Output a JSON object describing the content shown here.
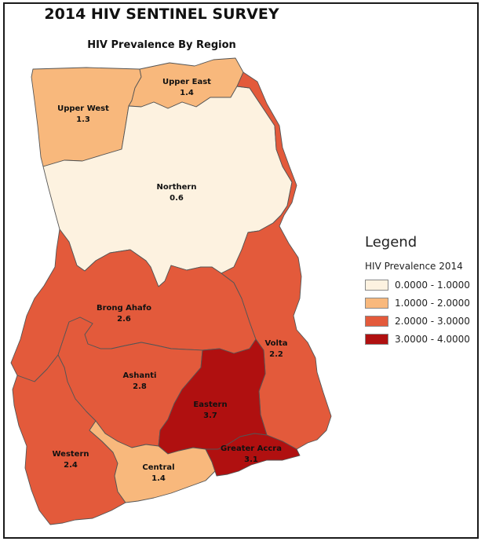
{
  "title": "2014 HIV SENTINEL SURVEY",
  "subtitle": "HIV Prevalence By Region",
  "legend": {
    "title": "Legend",
    "subtitle": "HIV Prevalence 2014",
    "classes": [
      {
        "label": "0.0000 - 1.0000",
        "color": "#fdf2e0"
      },
      {
        "label": "1.0000 - 2.0000",
        "color": "#f8b87c"
      },
      {
        "label": "2.0000 - 3.0000",
        "color": "#e35a3b"
      },
      {
        "label": "3.0000 - 4.0000",
        "color": "#b01010"
      }
    ]
  },
  "regions": [
    {
      "name": "Upper West",
      "value": "1.3",
      "class": 1
    },
    {
      "name": "Upper East",
      "value": "1.4",
      "class": 1
    },
    {
      "name": "Northern",
      "value": "0.6",
      "class": 0
    },
    {
      "name": "Brong Ahafo",
      "value": "2.6",
      "class": 2
    },
    {
      "name": "Volta",
      "value": "2.2",
      "class": 2
    },
    {
      "name": "Ashanti",
      "value": "2.8",
      "class": 2
    },
    {
      "name": "Eastern",
      "value": "3.7",
      "class": 3
    },
    {
      "name": "Western",
      "value": "2.4",
      "class": 2
    },
    {
      "name": "Central",
      "value": "1.4",
      "class": 1
    },
    {
      "name": "Greater Accra",
      "value": "3.1",
      "class": 3
    }
  ]
}
